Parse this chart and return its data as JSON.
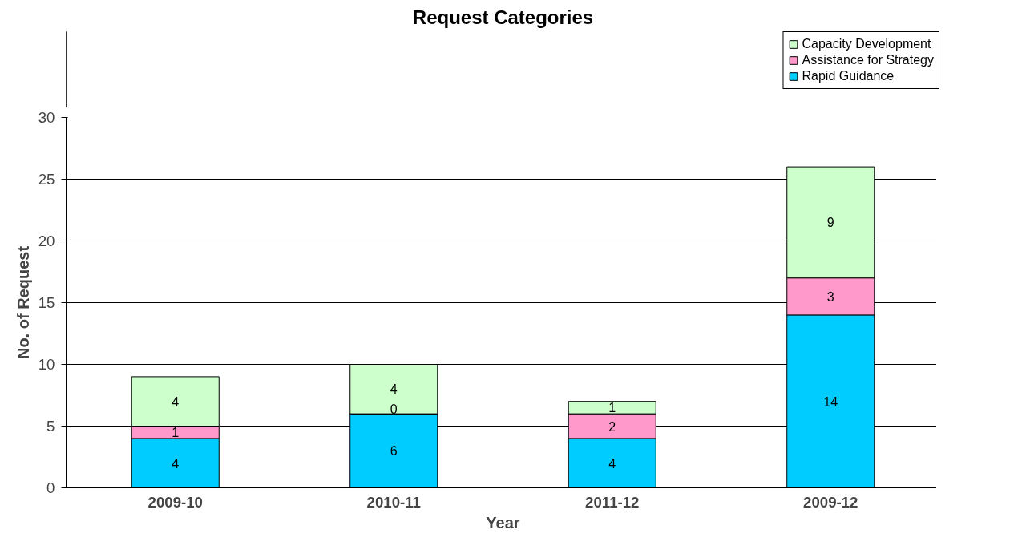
{
  "chart_data": {
    "type": "bar",
    "stacked": true,
    "title": "Request Categories",
    "xlabel": "Year",
    "ylabel": "No. of Request",
    "categories": [
      "2009-10",
      "2010-11",
      "2011-12",
      "2009-12"
    ],
    "series": [
      {
        "name": "Rapid Guidance",
        "color": "#00ccff",
        "values": [
          4,
          6,
          4,
          14
        ]
      },
      {
        "name": "Assistance for Strategy",
        "color": "#ff99cc",
        "values": [
          1,
          0,
          2,
          3
        ]
      },
      {
        "name": "Capacity Development",
        "color": "#ccffcc",
        "values": [
          4,
          4,
          1,
          9
        ]
      }
    ],
    "ylim": [
      0,
      30
    ],
    "yticks": [
      0,
      5,
      10,
      15,
      20,
      25,
      30
    ],
    "grid": "y",
    "legend": "top right",
    "data_labels": true
  }
}
